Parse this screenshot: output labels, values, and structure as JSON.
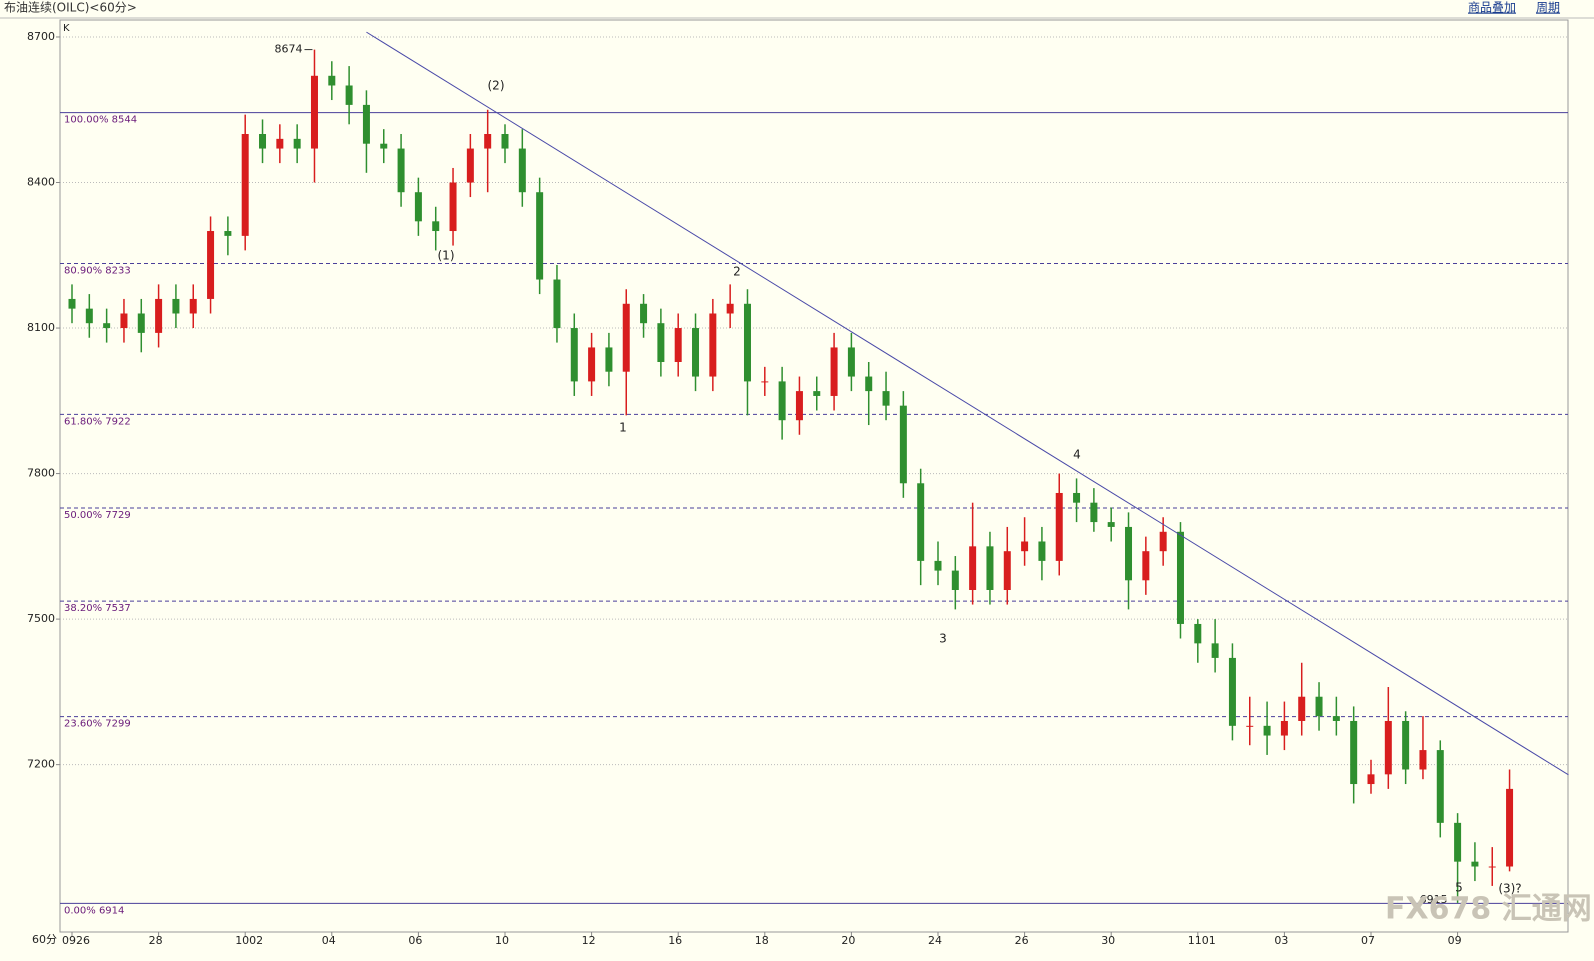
{
  "toolbar": [
    "商品叠加",
    "周期"
  ],
  "chart_data": {
    "type": "candlestick",
    "title": "布油连续(OILC)<60分>",
    "axis_unit": "K",
    "period_label": "60分",
    "watermark": "FX678 汇通网",
    "categories": [
      "0926",
      null,
      null,
      null,
      null,
      "28",
      null,
      null,
      null,
      null,
      "1002",
      null,
      null,
      null,
      null,
      "04",
      null,
      null,
      null,
      null,
      "06",
      null,
      null,
      null,
      null,
      "10",
      null,
      null,
      null,
      null,
      "12",
      null,
      null,
      null,
      null,
      "16",
      null,
      null,
      null,
      null,
      "18",
      null,
      null,
      null,
      null,
      "20",
      null,
      null,
      null,
      null,
      "24",
      null,
      null,
      null,
      null,
      "26",
      null,
      null,
      null,
      null,
      "30",
      null,
      null,
      null,
      null,
      "1101",
      null,
      null,
      null,
      null,
      "03",
      null,
      null,
      null,
      null,
      "07",
      null,
      null,
      null,
      null,
      "09",
      null,
      null,
      null
    ],
    "open": [
      8160,
      8140,
      8110,
      8100,
      8130,
      8090,
      8160,
      8130,
      8160,
      8300,
      8290,
      8500,
      8470,
      8490,
      8470,
      8620,
      8600,
      8560,
      8480,
      8470,
      8380,
      8320,
      8300,
      8400,
      8470,
      8500,
      8470,
      8380,
      8200,
      8100,
      7990,
      8060,
      8010,
      8150,
      8110,
      8030,
      8100,
      8000,
      8130,
      8150,
      7990,
      7990,
      7910,
      7970,
      7960,
      8060,
      8000,
      7970,
      7940,
      7780,
      7620,
      7600,
      7560,
      7650,
      7560,
      7640,
      7660,
      7620,
      7760,
      7740,
      7700,
      7690,
      7580,
      7640,
      7680,
      7490,
      7450,
      7420,
      7280,
      7280,
      7260,
      7290,
      7340,
      7300,
      7290,
      7160,
      7180,
      7290,
      7190,
      7230,
      7080,
      7000,
      6990,
      6990
    ],
    "high": [
      8190,
      8170,
      8140,
      8160,
      8160,
      8190,
      8190,
      8190,
      8330,
      8330,
      8540,
      8530,
      8520,
      8520,
      8674,
      8650,
      8640,
      8590,
      8510,
      8500,
      8410,
      8350,
      8430,
      8500,
      8550,
      8520,
      8510,
      8410,
      8230,
      8130,
      8090,
      8090,
      8180,
      8170,
      8140,
      8130,
      8130,
      8160,
      8190,
      8180,
      8020,
      8020,
      8000,
      8000,
      8090,
      8090,
      8030,
      8010,
      7970,
      7810,
      7660,
      7630,
      7740,
      7680,
      7690,
      7710,
      7690,
      7800,
      7790,
      7770,
      7730,
      7720,
      7670,
      7710,
      7700,
      7500,
      7500,
      7450,
      7340,
      7330,
      7330,
      7410,
      7370,
      7340,
      7320,
      7210,
      7360,
      7310,
      7300,
      7250,
      7100,
      7040,
      7030,
      7190
    ],
    "low": [
      8110,
      8080,
      8070,
      8070,
      8050,
      8060,
      8100,
      8100,
      8130,
      8250,
      8260,
      8440,
      8440,
      8440,
      8400,
      8570,
      8520,
      8420,
      8440,
      8350,
      8290,
      8260,
      8270,
      8370,
      8380,
      8440,
      8350,
      8170,
      8070,
      7960,
      7960,
      7980,
      7920,
      8080,
      8000,
      8000,
      7970,
      7970,
      8100,
      7920,
      7960,
      7870,
      7880,
      7930,
      7930,
      7970,
      7900,
      7910,
      7750,
      7570,
      7570,
      7520,
      7530,
      7530,
      7530,
      7610,
      7580,
      7590,
      7700,
      7680,
      7660,
      7520,
      7550,
      7610,
      7460,
      7410,
      7390,
      7250,
      7240,
      7220,
      7230,
      7260,
      7270,
      7260,
      7120,
      7140,
      7150,
      7160,
      7170,
      7050,
      6915,
      6960,
      6950,
      6980
    ],
    "close": [
      8140,
      8110,
      8100,
      8130,
      8090,
      8160,
      8130,
      8160,
      8300,
      8290,
      8500,
      8470,
      8490,
      8470,
      8620,
      8600,
      8560,
      8480,
      8470,
      8380,
      8320,
      8300,
      8400,
      8470,
      8500,
      8470,
      8380,
      8200,
      8100,
      7990,
      8060,
      8010,
      8150,
      8110,
      8030,
      8100,
      8000,
      8130,
      8150,
      7990,
      7990,
      7910,
      7970,
      7960,
      8060,
      8000,
      7970,
      7940,
      7780,
      7620,
      7600,
      7560,
      7650,
      7560,
      7640,
      7660,
      7620,
      7760,
      7740,
      7700,
      7690,
      7580,
      7640,
      7680,
      7490,
      7450,
      7420,
      7280,
      7280,
      7260,
      7290,
      7340,
      7300,
      7290,
      7160,
      7180,
      7290,
      7190,
      7230,
      7080,
      7000,
      6990,
      6990,
      7150
    ],
    "up_color": "#d81e1e",
    "down_color": "#2f8f2f",
    "ylim": [
      6855,
      8735
    ],
    "yticks": [
      7200,
      7500,
      7800,
      8100,
      8400,
      8700
    ],
    "grid": true,
    "levels": [
      {
        "value": 8544,
        "label": "100.00% 8544",
        "style": "solid"
      },
      {
        "value": 8233,
        "label": "80.90% 8233",
        "style": "dashed"
      },
      {
        "value": 7922,
        "label": "61.80% 7922",
        "style": "dashed"
      },
      {
        "value": 7729,
        "label": "50.00% 7729",
        "style": "dashed"
      },
      {
        "value": 7537,
        "label": "38.20% 7537",
        "style": "dashed"
      },
      {
        "value": 7299,
        "label": "23.60% 7299",
        "style": "dashed"
      },
      {
        "value": 6914,
        "label": "0.00% 6914",
        "style": "solid"
      }
    ],
    "level_color": "#4a3f9a",
    "trendline": {
      "x": [
        17,
        86.4
      ],
      "y": [
        8710,
        7179
      ],
      "color": "#4a4aa8"
    },
    "annotations": [
      "(2)",
      "(1)",
      "1",
      "2",
      "3",
      "4",
      "5",
      "(3)?"
    ]
  }
}
